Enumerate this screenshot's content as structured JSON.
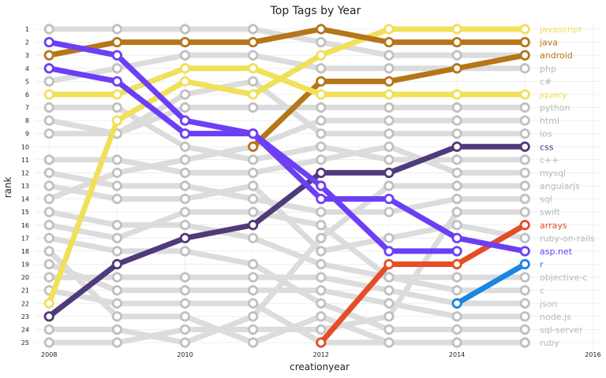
{
  "chart_data": {
    "type": "line",
    "title": "Top Tags by Year",
    "xlabel": "creationyear",
    "ylabel": "rank",
    "x_ticks": [
      2008,
      2010,
      2012,
      2014,
      2016
    ],
    "xlim": [
      2007.8,
      2016.1
    ],
    "y_ticks": [
      1,
      2,
      3,
      4,
      5,
      6,
      7,
      8,
      9,
      10,
      11,
      12,
      13,
      14,
      15,
      16,
      17,
      18,
      19,
      20,
      21,
      22,
      23,
      24,
      25
    ],
    "ylim": [
      25,
      1
    ],
    "grid": true,
    "legend": "none",
    "x": [
      2008,
      2009,
      2010,
      2011,
      2012,
      2013,
      2014,
      2015
    ],
    "highlighted_series": [
      {
        "name": "javascript",
        "color": "#f0e05a",
        "values": [
          22,
          8,
          5,
          6,
          3,
          1,
          1,
          1
        ],
        "start": 2008
      },
      {
        "name": "java",
        "color": "#b5761a",
        "values": [
          3,
          2,
          2,
          2,
          1,
          2,
          2,
          2
        ],
        "start": 2008
      },
      {
        "name": "android",
        "color": "#b5761a",
        "values": [
          10,
          5,
          5,
          4,
          3
        ],
        "start": 2011
      },
      {
        "name": "jquery",
        "color": "#f0e05a",
        "values": [
          6,
          6,
          4,
          4,
          6,
          6,
          6,
          6
        ],
        "start": 2008
      },
      {
        "name": "css",
        "color": "#4f3a7a",
        "values": [
          23,
          19,
          17,
          16,
          12,
          12,
          10,
          10
        ],
        "start": 2008
      },
      {
        "name": "arrays",
        "color": "#e44d26",
        "values": [
          25,
          19,
          19,
          16
        ],
        "start": 2012
      },
      {
        "name": "asp.net",
        "color": "#6c3ff5",
        "values": [
          2,
          3,
          8,
          9,
          13,
          18,
          18
        ],
        "start": 2008
      },
      {
        "name": "c#",
        "color": "#6c3ff5",
        "values": [
          4,
          5,
          9,
          9,
          14,
          14,
          17,
          18
        ],
        "start": 2008
      },
      {
        "name": "r",
        "color": "#1a86e0",
        "values": [
          22,
          19
        ],
        "start": 2014
      }
    ],
    "gray_series": [
      {
        "name": "php",
        "values": [
          5,
          4,
          3,
          3,
          4,
          4,
          4,
          4
        ]
      },
      {
        "name": "python",
        "values": [
          8,
          9,
          7,
          7,
          7,
          7,
          7,
          7
        ]
      },
      {
        "name": "html",
        "values": [
          14,
          12,
          11,
          10,
          8,
          8,
          8,
          8
        ]
      },
      {
        "name": "ios",
        "values": [
          9,
          9,
          6,
          5,
          9,
          9,
          9,
          9
        ]
      },
      {
        "name": "c++",
        "values": [
          7,
          7,
          10,
          11,
          10,
          11,
          11,
          11
        ]
      },
      {
        "name": "mysql",
        "values": [
          11,
          11,
          12,
          12,
          11,
          10,
          12,
          12
        ]
      },
      {
        "name": "angularjs",
        "values": [
          24,
          24,
          25,
          23,
          17,
          13,
          13,
          13
        ]
      },
      {
        "name": "sql",
        "values": [
          12,
          13,
          13,
          14,
          15,
          15,
          14,
          14
        ]
      },
      {
        "name": "swift",
        "values": [
          25,
          25,
          24,
          24,
          24,
          23,
          15,
          15
        ]
      },
      {
        "name": "ruby-on-rails",
        "values": [
          13,
          14,
          14,
          13,
          18,
          17,
          16,
          17
        ]
      },
      {
        "name": "objective-c",
        "values": [
          16,
          17,
          15,
          15,
          16,
          20,
          20,
          20
        ]
      },
      {
        "name": "c",
        "values": [
          15,
          16,
          16,
          17,
          19,
          20,
          21,
          21
        ]
      },
      {
        "name": "json",
        "values": [
          20,
          20,
          20,
          20,
          20,
          21,
          22,
          22
        ]
      },
      {
        "name": "node.js",
        "values": [
          19,
          21,
          21,
          21,
          21,
          22,
          23,
          23
        ]
      },
      {
        "name": "sql-server",
        "values": [
          17,
          18,
          18,
          19,
          22,
          24,
          24,
          24
        ]
      },
      {
        "name": "ruby",
        "values": [
          18,
          23,
          23,
          25,
          23,
          25,
          25,
          25
        ]
      },
      {
        "name": "",
        "values": [
          21,
          22,
          22,
          22,
          25,
          25,
          25,
          25
        ]
      },
      {
        "name": "",
        "values": [
          1,
          1,
          1,
          1,
          2,
          3,
          3,
          3
        ]
      }
    ],
    "end_labels": [
      {
        "text": "javascript",
        "color": "#f0e05a"
      },
      {
        "text": "java",
        "color": "#b5761a"
      },
      {
        "text": "android",
        "color": "#b5761a"
      },
      {
        "text": "php",
        "color": "#b8b8b8"
      },
      {
        "text": "c#",
        "color": "#b8b8b8"
      },
      {
        "text": "jquery",
        "color": "#f0e05a"
      },
      {
        "text": "python",
        "color": "#b8b8b8"
      },
      {
        "text": "html",
        "color": "#b8b8b8"
      },
      {
        "text": "ios",
        "color": "#b8b8b8"
      },
      {
        "text": "css",
        "color": "#4f3a7a"
      },
      {
        "text": "c++",
        "color": "#b8b8b8"
      },
      {
        "text": "mysql",
        "color": "#b8b8b8"
      },
      {
        "text": "angularjs",
        "color": "#b8b8b8"
      },
      {
        "text": "sql",
        "color": "#b8b8b8"
      },
      {
        "text": "swift",
        "color": "#b8b8b8"
      },
      {
        "text": "arrays",
        "color": "#e44d26"
      },
      {
        "text": "ruby-on-rails",
        "color": "#b8b8b8"
      },
      {
        "text": "asp.net",
        "color": "#6c3ff5"
      },
      {
        "text": "r",
        "color": "#1a86e0"
      },
      {
        "text": "objective-c",
        "color": "#b8b8b8"
      },
      {
        "text": "c",
        "color": "#b8b8b8"
      },
      {
        "text": "json",
        "color": "#b8b8b8"
      },
      {
        "text": "node.js",
        "color": "#b8b8b8"
      },
      {
        "text": "sql-server",
        "color": "#b8b8b8"
      },
      {
        "text": "ruby",
        "color": "#b8b8b8"
      }
    ],
    "colors": {
      "gray_line": "#dcdcdc",
      "gray_marker": "#c0c0c0",
      "grid": "#ebebeb"
    }
  }
}
